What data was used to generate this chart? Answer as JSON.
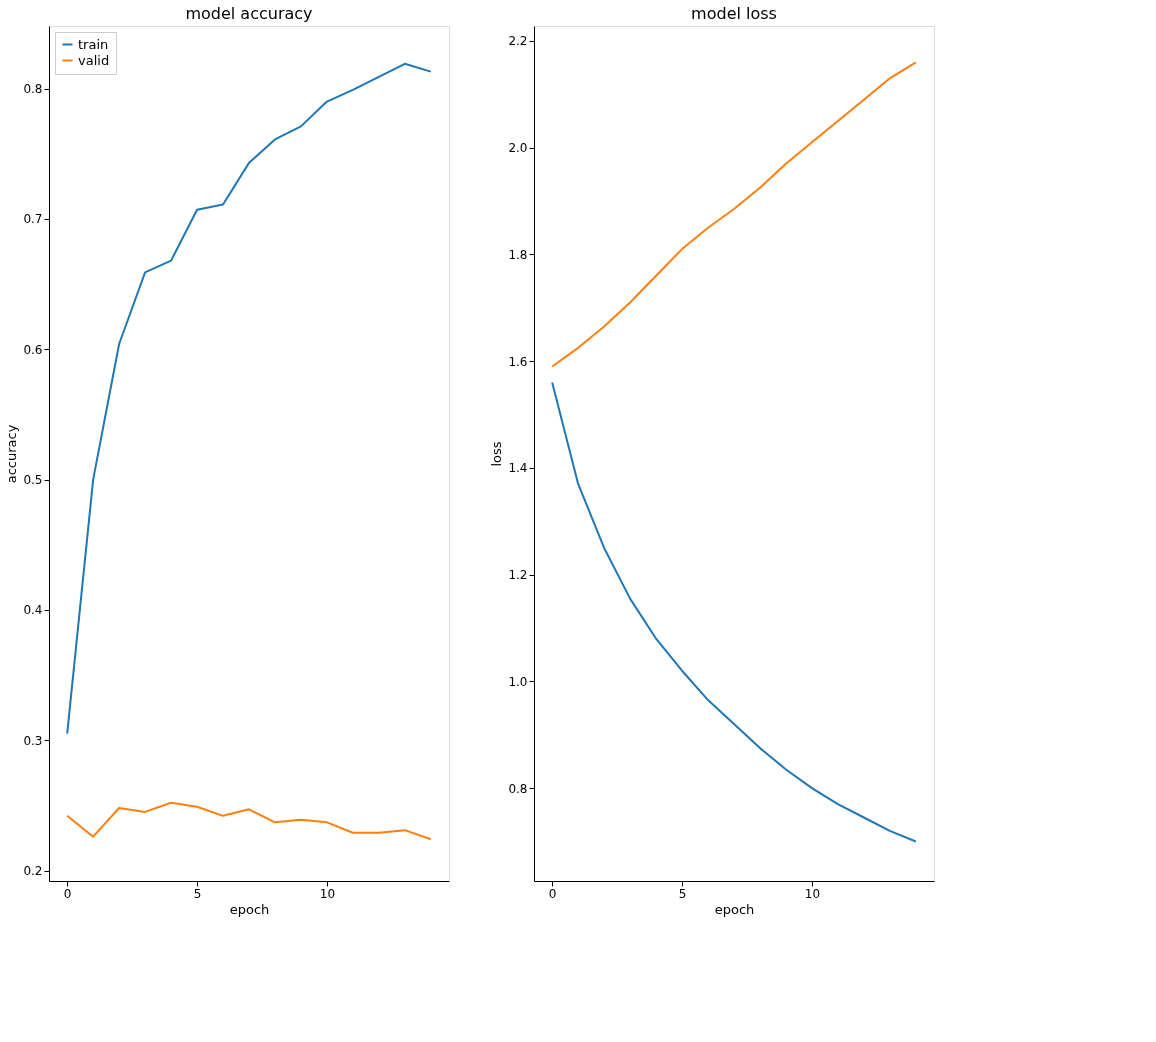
{
  "chart_data": [
    {
      "type": "line",
      "title": "model accuracy",
      "xlabel": "epoch",
      "ylabel": "accuracy",
      "x": [
        0,
        1,
        2,
        3,
        4,
        5,
        6,
        7,
        8,
        9,
        10,
        11,
        12,
        13,
        14
      ],
      "xlim": [
        -0.7,
        14.7
      ],
      "xticks": [
        0,
        5,
        10
      ],
      "ylim": [
        0.192,
        0.848
      ],
      "yticks": [
        0.2,
        0.3,
        0.4,
        0.5,
        0.6,
        0.7,
        0.8
      ],
      "legend": "top left",
      "grid": false,
      "series": [
        {
          "name": "train",
          "color": "#1f77b4",
          "values": [
            0.305,
            0.5,
            0.604,
            0.659,
            0.668,
            0.707,
            0.711,
            0.743,
            0.761,
            0.771,
            0.79,
            0.799,
            0.809,
            0.819,
            0.813
          ]
        },
        {
          "name": "valid",
          "color": "#ff7f0e",
          "values": [
            0.242,
            0.226,
            0.248,
            0.245,
            0.252,
            0.249,
            0.242,
            0.247,
            0.237,
            0.239,
            0.237,
            0.229,
            0.229,
            0.231,
            0.224
          ]
        }
      ]
    },
    {
      "type": "line",
      "title": "model loss",
      "xlabel": "epoch",
      "ylabel": "loss",
      "x": [
        0,
        1,
        2,
        3,
        4,
        5,
        6,
        7,
        8,
        9,
        10,
        11,
        12,
        13,
        14
      ],
      "xlim": [
        -0.7,
        14.7
      ],
      "xticks": [
        0,
        5,
        10
      ],
      "ylim": [
        0.626,
        2.228
      ],
      "yticks": [
        0.8,
        {
          "value": 1,
          "label": "1.0"
        },
        1.2,
        1.4,
        1.6,
        1.8,
        {
          "value": 2,
          "label": "2.0"
        },
        2.2
      ],
      "legend": "top left",
      "grid": false,
      "series": [
        {
          "name": "train",
          "color": "#1f77b4",
          "values": [
            1.56,
            1.37,
            1.25,
            1.155,
            1.08,
            1.02,
            0.965,
            0.92,
            0.875,
            0.835,
            0.8,
            0.77,
            0.745,
            0.72,
            0.7
          ]
        },
        {
          "name": "valid",
          "color": "#ff7f0e",
          "values": [
            1.59,
            1.625,
            1.665,
            1.71,
            1.76,
            1.81,
            1.85,
            1.885,
            1.925,
            1.97,
            2.01,
            2.05,
            2.09,
            2.13,
            2.16
          ]
        }
      ]
    }
  ]
}
